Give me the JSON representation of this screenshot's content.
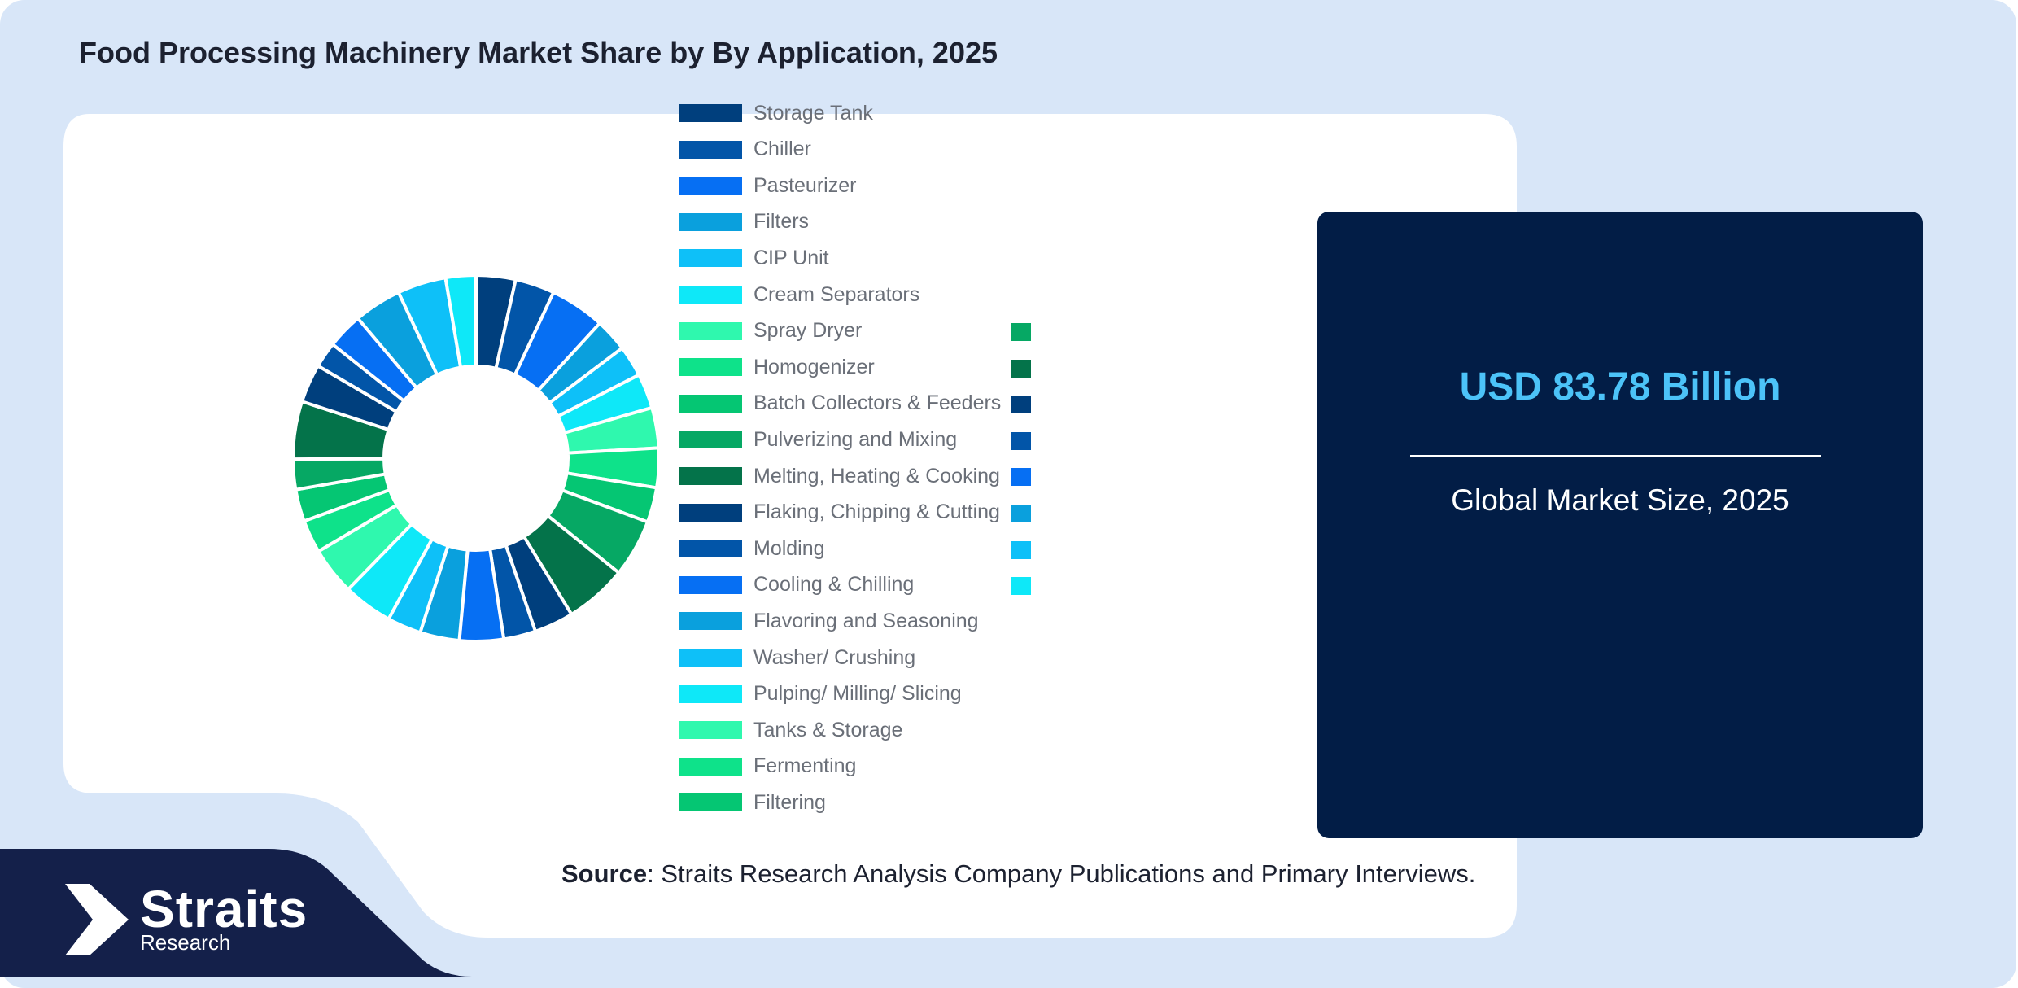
{
  "title": "Food Processing Machinery Market Share by By Application, 2025",
  "info": {
    "value": "USD 83.78 Billion",
    "caption": "Global Market Size, 2025"
  },
  "source": {
    "label": "Source",
    "text": ": Straits Research Analysis Company Publications and Primary Interviews."
  },
  "brand": {
    "name": "Straits",
    "sub": "Research"
  },
  "colors": {
    "background": "#d8e6f8",
    "card": "#ffffff",
    "dark_navy": "#021d46",
    "footer_navy": "#14204a",
    "accent_blue": "#4cc3f8"
  },
  "chart_data": {
    "type": "pie",
    "variant": "donut",
    "title": "Food Processing Machinery Market Share by By Application, 2025",
    "legend_position": "right",
    "series": [
      {
        "name": "Storage Tank",
        "color": "#003f7d"
      },
      {
        "name": "Chiller",
        "color": "#0255a8"
      },
      {
        "name": "Pasteurizer",
        "color": "#066ff3"
      },
      {
        "name": "Filters",
        "color": "#0aa0dd"
      },
      {
        "name": "CIP Unit",
        "color": "#0ec0f8"
      },
      {
        "name": "Cream Separators",
        "color": "#0ee8f8"
      },
      {
        "name": "Spray Dryer",
        "color": "#2ff8ae"
      },
      {
        "name": "Homogenizer",
        "color": "#0ee28a"
      },
      {
        "name": "Batch Collectors & Feeders",
        "color": "#05c673"
      },
      {
        "name": "Pulverizing and Mixing",
        "color": "#06a864"
      },
      {
        "name": "Melting, Heating & Cooking",
        "color": "#04734a"
      },
      {
        "name": "Flaking, Chipping & Cutting",
        "color": "#003f7d"
      },
      {
        "name": "Molding",
        "color": "#0255a8"
      },
      {
        "name": "Cooling & Chilling",
        "color": "#066ff3"
      },
      {
        "name": "Flavoring and Seasoning",
        "color": "#0aa0dd"
      },
      {
        "name": "Washer/ Crushing",
        "color": "#0ec0f8"
      },
      {
        "name": "Pulping/ Milling/ Slicing",
        "color": "#0ee8f8"
      },
      {
        "name": "Tanks & Storage",
        "color": "#2ff8ae"
      },
      {
        "name": "Fermenting",
        "color": "#0ee28a"
      },
      {
        "name": "Filtering",
        "color": "#05c673"
      }
    ],
    "extra_swatch_colors": [
      "#06a864",
      "#04734a",
      "#003f7d",
      "#0255a8",
      "#066ff3",
      "#0aa0dd",
      "#0ec0f8",
      "#0ee8f8"
    ],
    "slices": [
      {
        "color": "#003f7d",
        "value": 4.3
      },
      {
        "color": "#0255a8",
        "value": 4.3
      },
      {
        "color": "#066ff3",
        "value": 6.0
      },
      {
        "color": "#0aa0dd",
        "value": 3.6
      },
      {
        "color": "#0ec0f8",
        "value": 3.4
      },
      {
        "color": "#0ee8f8",
        "value": 3.8
      },
      {
        "color": "#2ff8ae",
        "value": 4.4
      },
      {
        "color": "#0ee28a",
        "value": 4.3
      },
      {
        "color": "#05c673",
        "value": 3.8
      },
      {
        "color": "#06a864",
        "value": 6.3
      },
      {
        "color": "#04734a",
        "value": 6.8
      },
      {
        "color": "#003f7d",
        "value": 4.3
      },
      {
        "color": "#0255a8",
        "value": 3.5
      },
      {
        "color": "#066ff3",
        "value": 4.8
      },
      {
        "color": "#0aa0dd",
        "value": 4.3
      },
      {
        "color": "#0ec0f8",
        "value": 3.7
      },
      {
        "color": "#0ee8f8",
        "value": 5.4
      },
      {
        "color": "#2ff8ae",
        "value": 5.2
      },
      {
        "color": "#0ee28a",
        "value": 3.6
      },
      {
        "color": "#05c673",
        "value": 3.5
      },
      {
        "color": "#06a864",
        "value": 3.3
      },
      {
        "color": "#04734a",
        "value": 6.3
      },
      {
        "color": "#003f7d",
        "value": 4.2
      },
      {
        "color": "#0255a8",
        "value": 2.8
      },
      {
        "color": "#066ff3",
        "value": 3.9
      },
      {
        "color": "#0aa0dd",
        "value": 5.2
      },
      {
        "color": "#0ec0f8",
        "value": 5.3
      },
      {
        "color": "#0ee8f8",
        "value": 3.3
      }
    ]
  }
}
